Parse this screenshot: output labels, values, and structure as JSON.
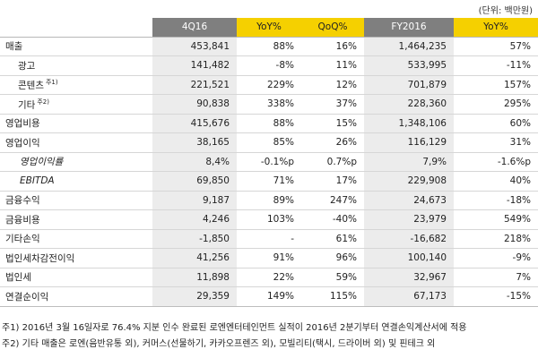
{
  "unit": "(단위: 백만원)",
  "columns": [
    "4Q16",
    "YoY%",
    "QoQ%",
    "FY2016",
    "YoY%"
  ],
  "rows": [
    {
      "label": "매출",
      "sup": "",
      "v": [
        "453,841",
        "88%",
        "16%",
        "1,464,235",
        "57%"
      ]
    },
    {
      "label": "광고",
      "sup": "",
      "v": [
        "141,482",
        "-8%",
        "11%",
        "533,995",
        "-11%"
      ]
    },
    {
      "label": "콘텐츠",
      "sup": "주1)",
      "v": [
        "221,521",
        "229%",
        "12%",
        "701,879",
        "157%"
      ]
    },
    {
      "label": "기타",
      "sup": "주2)",
      "v": [
        "90,838",
        "338%",
        "37%",
        "228,360",
        "295%"
      ]
    },
    {
      "label": "영업비용",
      "sup": "",
      "v": [
        "415,676",
        "88%",
        "15%",
        "1,348,106",
        "60%"
      ]
    },
    {
      "label": "영업이익",
      "sup": "",
      "v": [
        "38,165",
        "85%",
        "26%",
        "116,129",
        "31%"
      ]
    },
    {
      "label": "영업이익률",
      "sup": "",
      "v": [
        "8,4%",
        "-0.1%p",
        "0.7%p",
        "7,9%",
        "-1.6%p"
      ]
    },
    {
      "label": "EBITDA",
      "sup": "",
      "v": [
        "69,850",
        "71%",
        "17%",
        "229,908",
        "40%"
      ]
    },
    {
      "label": "금융수익",
      "sup": "",
      "v": [
        "9,187",
        "89%",
        "247%",
        "24,673",
        "-18%"
      ]
    },
    {
      "label": "금융비용",
      "sup": "",
      "v": [
        "4,246",
        "103%",
        "-40%",
        "23,979",
        "549%"
      ]
    },
    {
      "label": "기타손익",
      "sup": "",
      "v": [
        "-1,850",
        "-",
        "61%",
        "-16,682",
        "218%"
      ]
    },
    {
      "label": "법인세차감전이익",
      "sup": "",
      "v": [
        "41,256",
        "91%",
        "96%",
        "100,140",
        "-9%"
      ]
    },
    {
      "label": "법인세",
      "sup": "",
      "v": [
        "11,898",
        "22%",
        "59%",
        "32,967",
        "7%"
      ]
    },
    {
      "label": "연결순이익",
      "sup": "",
      "v": [
        "29,359",
        "149%",
        "115%",
        "67,173",
        "-15%"
      ]
    }
  ],
  "notes": [
    "주1) 2016년 3월 16일자로 76.4% 지분 인수 완료된 로엔엔터테인먼트 실적이 2016년 2분기부터 연결손익계산서에 적용",
    "주2) 기타 매출은 로엔(음반유통 외), 커머스(선물하기, 카카오프렌즈 외), 모빌리티(택시, 드라이버 외) 및 핀테크 외"
  ],
  "colors": {
    "header_gray": "#7f7f7f",
    "header_yellow": "#f5d000",
    "shade": "#ececec"
  }
}
